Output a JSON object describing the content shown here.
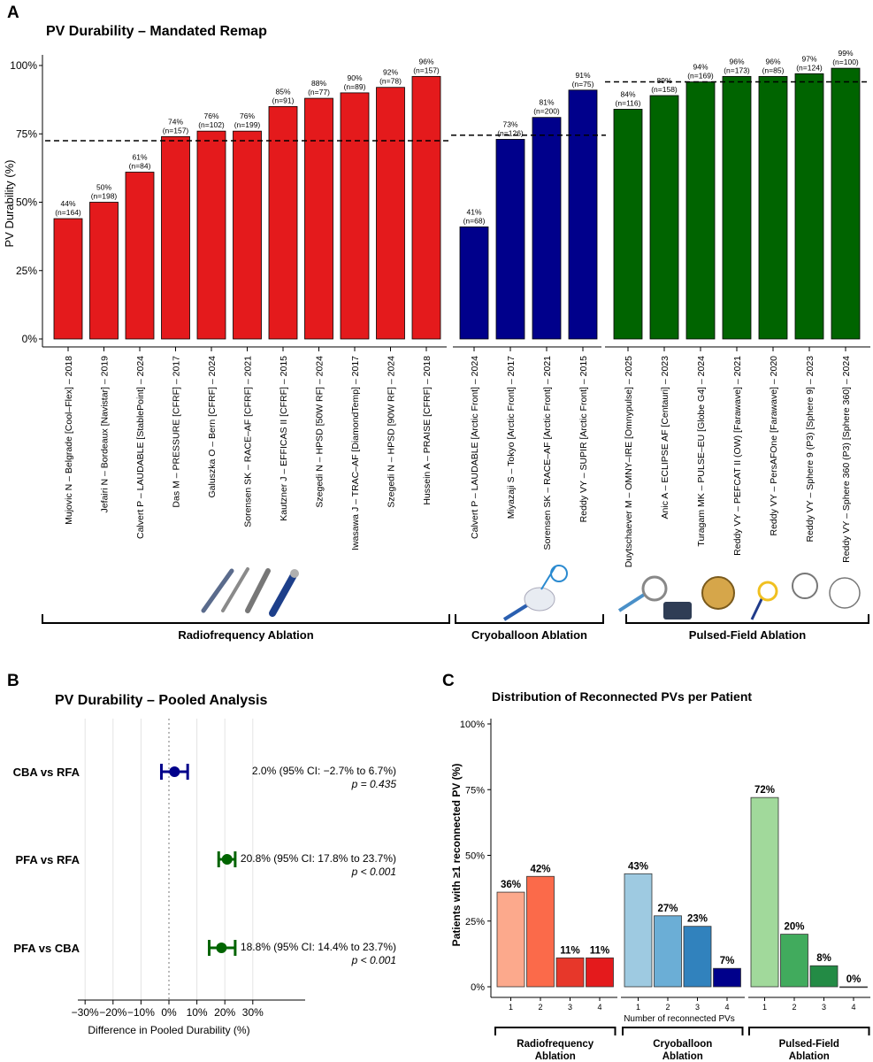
{
  "panel_a": {
    "label": "A",
    "chart_data": {
      "type": "bar",
      "title": "PV Durability – Mandated Remap",
      "ylabel": "PV Durability (%)",
      "ylim": [
        0,
        100
      ],
      "yticks": [
        "0%",
        "25%",
        "50%",
        "75%",
        "100%"
      ],
      "groups": [
        {
          "name": "Radiofrequency Ablation",
          "color": "#e41a1c",
          "pooled": 72.5,
          "bars": [
            {
              "label": "Mujovic N – Belgrade [Cool–Flex] – 2018",
              "value": 44,
              "pct": "44%",
              "n": "(n=164)"
            },
            {
              "label": "Jefairi N – Bordeaux [Navistar] – 2019",
              "value": 50,
              "pct": "50%",
              "n": "(n=198)"
            },
            {
              "label": "Calvert P – LAUDABLE [StablePoint] – 2024",
              "value": 61,
              "pct": "61%",
              "n": "(n=84)"
            },
            {
              "label": "Das M – PRESSURE [CFRF] – 2017",
              "value": 74,
              "pct": "74%",
              "n": "(n=157)"
            },
            {
              "label": "Galuszka O – Bern [CFRF] – 2024",
              "value": 76,
              "pct": "76%",
              "n": "(n=102)"
            },
            {
              "label": "Sorensen SK – RACE–AF [CFRF] – 2021",
              "value": 76,
              "pct": "76%",
              "n": "(n=199)"
            },
            {
              "label": "Kautzner J – EFFICAS II [CFRF] – 2015",
              "value": 85,
              "pct": "85%",
              "n": "(n=91)"
            },
            {
              "label": "Szegedi N – HPSD [50W RF] – 2024",
              "value": 88,
              "pct": "88%",
              "n": "(n=77)"
            },
            {
              "label": "Iwasawa J – TRAC–AF [DiamondTemp] – 2017",
              "value": 90,
              "pct": "90%",
              "n": "(n=89)"
            },
            {
              "label": "Szegedi N – HPSD [90W RF] – 2024",
              "value": 92,
              "pct": "92%",
              "n": "(n=78)"
            },
            {
              "label": "Hussein A – PRAISE [CFRF] – 2018",
              "value": 96,
              "pct": "96%",
              "n": "(n=157)"
            }
          ]
        },
        {
          "name": "Cryoballoon Ablation",
          "color": "#00008b",
          "pooled": 74.5,
          "bars": [
            {
              "label": "Calvert P – LAUDABLE [Arctic Front] – 2024",
              "value": 41,
              "pct": "41%",
              "n": "(n=68)"
            },
            {
              "label": "Miyazaji S – Tokyo [Arctic Front] – 2017",
              "value": 73,
              "pct": "73%",
              "n": "(n=126)"
            },
            {
              "label": "Sorensen SK – RACE–AF [Arctic Front] – 2021",
              "value": 81,
              "pct": "81%",
              "n": "(n=200)"
            },
            {
              "label": "Reddy VY – SUPIR [Arctic Front] – 2015",
              "value": 91,
              "pct": "91%",
              "n": "(n=75)"
            }
          ]
        },
        {
          "name": "Pulsed-Field Ablation",
          "color": "#006400",
          "pooled": 94,
          "bars": [
            {
              "label": "Duytschaever M – OMNY–IRE [Omnypulse] – 2025",
              "value": 84,
              "pct": "84%",
              "n": "(n=116)"
            },
            {
              "label": "Anic A – ECLIPSE AF [Centauri] – 2023",
              "value": 89,
              "pct": "89%",
              "n": "(n=158)"
            },
            {
              "label": "Turagam MK – PULSE–EU [Globe G4] – 2024",
              "value": 94,
              "pct": "94%",
              "n": "(n=169)"
            },
            {
              "label": "Reddy VY – PEFCAT II (OW) [Farawave] – 2021",
              "value": 96,
              "pct": "96%",
              "n": "(n=173)"
            },
            {
              "label": "Reddy VY – PersAFOne [Farawave] – 2020",
              "value": 96,
              "pct": "96%",
              "n": "(n=85)"
            },
            {
              "label": "Reddy VY – Sphere 9 (P3) [Sphere 9] – 2023",
              "value": 97,
              "pct": "97%",
              "n": "(n=124)"
            },
            {
              "label": "Reddy VY – Sphere 360 (P3) [Sphere 360] – 2024",
              "value": 99,
              "pct": "99%",
              "n": "(n=100)"
            }
          ]
        }
      ]
    }
  },
  "panel_b": {
    "label": "B",
    "chart_data": {
      "type": "scatter",
      "title": "PV Durability – Pooled Analysis",
      "xlabel": "Difference in Pooled Durability (%)",
      "xlim": [
        -30,
        30
      ],
      "xticks": [
        "−30%",
        "−20%",
        "−10%",
        "0%",
        "10%",
        "20%",
        "30%"
      ],
      "rows": [
        {
          "label": "CBA vs RFA",
          "estimate": 2.0,
          "ci_low": -2.7,
          "ci_high": 6.7,
          "color": "#00008b",
          "ci_text": "2.0% (95% CI: −2.7% to 6.7%)",
          "p_text": "p = 0.435"
        },
        {
          "label": "PFA vs RFA",
          "estimate": 20.8,
          "ci_low": 17.8,
          "ci_high": 23.7,
          "color": "#006400",
          "ci_text": "20.8% (95% CI: 17.8% to 23.7%)",
          "p_text": "p < 0.001"
        },
        {
          "label": "PFA vs CBA",
          "estimate": 18.8,
          "ci_low": 14.4,
          "ci_high": 23.7,
          "color": "#006400",
          "ci_text": "18.8% (95% CI: 14.4% to 23.7%)",
          "p_text": "p < 0.001"
        }
      ]
    }
  },
  "panel_c": {
    "label": "C",
    "chart_data": {
      "type": "bar",
      "title": "Distribution of Reconnected PVs per Patient",
      "ylabel": "Patients with ≥1 reconnected PV (%)",
      "xlabel": "Number of reconnected PVs",
      "ylim": [
        0,
        100
      ],
      "yticks": [
        "0%",
        "25%",
        "50%",
        "75%",
        "100%"
      ],
      "categories": [
        "1",
        "2",
        "3",
        "4"
      ],
      "series": [
        {
          "name": "Radiofrequency Ablation",
          "name_lines": [
            "Radiofrequency",
            "Ablation"
          ],
          "values": [
            36,
            42,
            11,
            11
          ],
          "labels": [
            "36%",
            "42%",
            "11%",
            "11%"
          ],
          "colors": [
            "#fca98c",
            "#fb6a4a",
            "#e7372a",
            "#e41a1c"
          ]
        },
        {
          "name": "Cryoballoon Ablation",
          "name_lines": [
            "Cryoballoon",
            "Ablation"
          ],
          "values": [
            43,
            27,
            23,
            7
          ],
          "labels": [
            "43%",
            "27%",
            "23%",
            "7%"
          ],
          "colors": [
            "#9ecae1",
            "#6baed6",
            "#3182bd",
            "#00008b"
          ]
        },
        {
          "name": "Pulsed-Field Ablation",
          "name_lines": [
            "Pulsed-Field",
            "Ablation"
          ],
          "values": [
            72,
            20,
            8,
            0
          ],
          "labels": [
            "72%",
            "20%",
            "8%",
            "0%"
          ],
          "colors": [
            "#a1d99b",
            "#41ab5d",
            "#238b45",
            "#006400"
          ]
        }
      ]
    }
  }
}
